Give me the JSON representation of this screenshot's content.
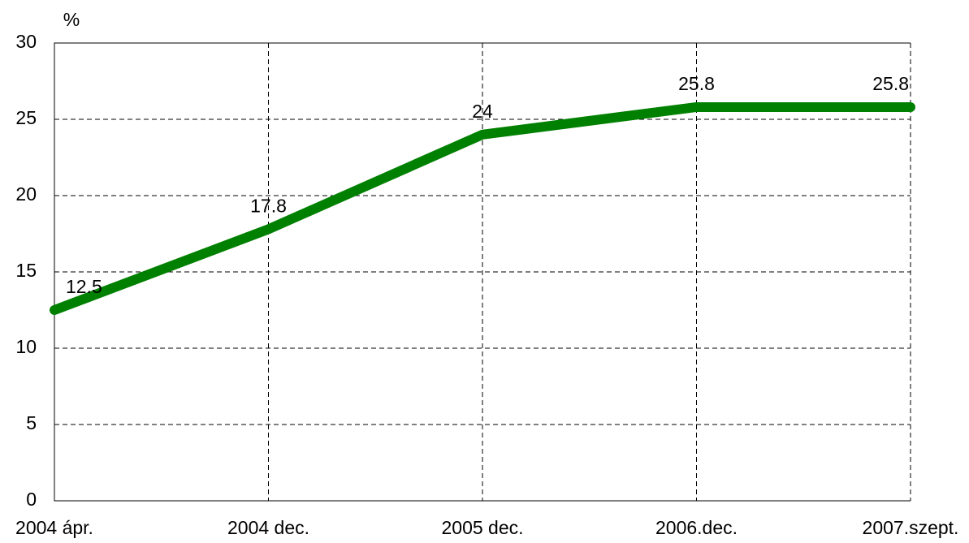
{
  "chart_data": {
    "type": "line",
    "y_axis_label": "%",
    "categories": [
      "2004 ápr.",
      "2004 dec.",
      "2005 dec.",
      "2006.dec.",
      "2007.szept."
    ],
    "series": [
      {
        "name": null,
        "color": "#008000",
        "values": [
          12.5,
          17.8,
          24,
          25.8,
          25.8
        ]
      }
    ],
    "ylim": [
      0,
      30
    ],
    "yticks": [
      0,
      5,
      10,
      15,
      20,
      25,
      30
    ],
    "grid": true,
    "data_labels": true
  }
}
